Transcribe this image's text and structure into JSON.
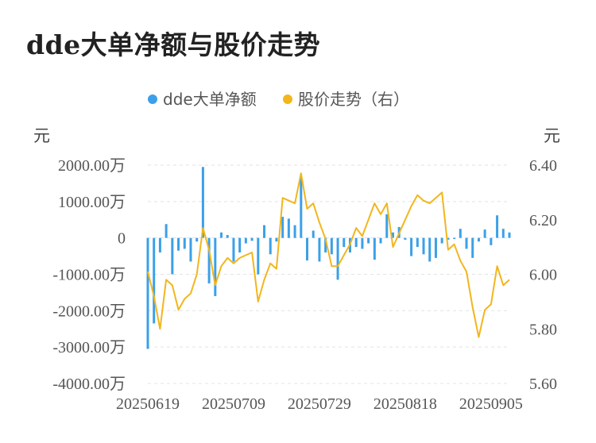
{
  "title": "dde大单净额与股价走势",
  "chart_data": {
    "type": "bar+line",
    "legend": [
      {
        "name": "dde大单净额",
        "color": "#3ba0e8"
      },
      {
        "name": "股价走势（右）",
        "color": "#f2b61c"
      }
    ],
    "left_unit": "元",
    "right_unit": "元",
    "left_ticks": [
      "2000.00万",
      "1000.00万",
      "0",
      "-1000.00万",
      "-2000.00万",
      "-3000.00万",
      "-4000.00万"
    ],
    "right_ticks": [
      "6.40",
      "6.20",
      "6.00",
      "5.80",
      "5.60"
    ],
    "ylim_left": [
      -4000,
      2000
    ],
    "ylim_right": [
      5.6,
      6.4
    ],
    "x_tick_labels": [
      "20250619",
      "20250709",
      "20250729",
      "20250818",
      "20250905"
    ],
    "x_tick_indices": [
      0,
      14,
      28,
      42,
      56
    ],
    "series": [
      {
        "name": "dde大单净额",
        "type": "bar",
        "unit": "万元",
        "values": [
          -3050,
          -2350,
          -400,
          380,
          -1000,
          -350,
          -300,
          -650,
          -100,
          1950,
          -1250,
          -1600,
          150,
          80,
          -650,
          -400,
          -150,
          -80,
          -1000,
          350,
          -450,
          -100,
          580,
          530,
          350,
          1700,
          -620,
          200,
          -650,
          -400,
          -450,
          -1150,
          -250,
          -400,
          -250,
          -300,
          -150,
          -600,
          -150,
          650,
          150,
          300,
          -50,
          -500,
          -250,
          -450,
          -650,
          -550,
          -150,
          -50,
          -30,
          250,
          -300,
          -550,
          -100,
          230,
          -200,
          620,
          250,
          150
        ]
      },
      {
        "name": "股价走势（右）",
        "type": "line",
        "values": [
          6.01,
          5.92,
          5.8,
          5.98,
          5.96,
          5.87,
          5.91,
          5.93,
          6.0,
          6.17,
          6.09,
          5.96,
          6.03,
          6.06,
          6.04,
          6.06,
          6.07,
          6.08,
          5.9,
          5.98,
          6.04,
          6.02,
          6.28,
          6.27,
          6.26,
          6.37,
          6.24,
          6.26,
          6.19,
          6.13,
          6.03,
          6.03,
          6.07,
          6.11,
          6.17,
          6.14,
          6.2,
          6.26,
          6.22,
          6.26,
          6.1,
          6.15,
          6.2,
          6.25,
          6.29,
          6.27,
          6.26,
          6.28,
          6.3,
          6.09,
          6.11,
          6.05,
          6.01,
          5.88,
          5.77,
          5.87,
          5.89,
          6.03,
          5.96,
          5.98
        ]
      }
    ],
    "grid": "horizontal dashed",
    "legend_position": "top-center"
  }
}
